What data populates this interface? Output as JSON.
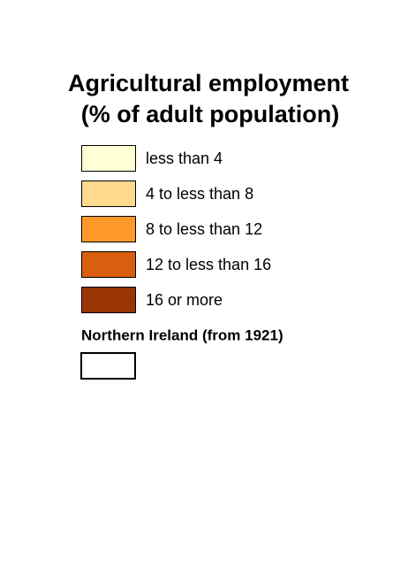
{
  "title": {
    "lines": [
      "Agricultural employment",
      "(% of adult population)"
    ]
  },
  "legend": {
    "items": [
      {
        "label": "less than 4",
        "color": "#ffffd4"
      },
      {
        "label": "4 to less than 8",
        "color": "#fed98e"
      },
      {
        "label": "8 to less than 12",
        "color": "#fe9929"
      },
      {
        "label": "12 to less than 16",
        "color": "#d95f0e"
      },
      {
        "label": "16 or more",
        "color": "#993404"
      }
    ]
  },
  "northern_ireland": {
    "label": "Northern Ireland (from 1921)",
    "color": "#ffffff"
  }
}
